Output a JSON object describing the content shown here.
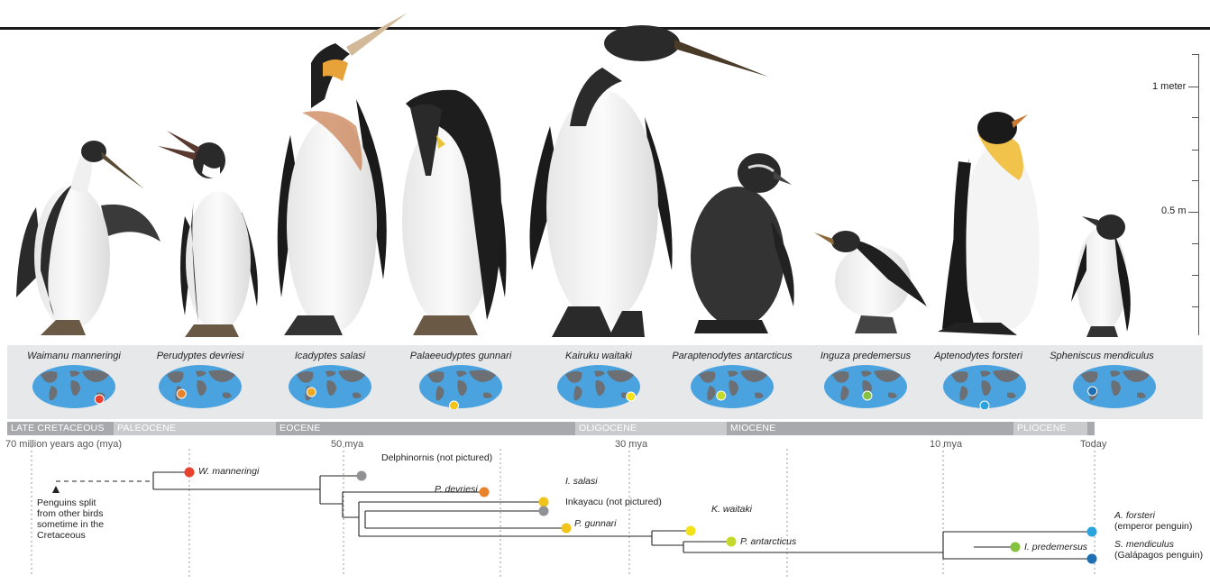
{
  "scale": {
    "one_meter": "1 meter",
    "half_meter": "0.5 m"
  },
  "species": [
    {
      "name": "Waimanu manneringi",
      "dot": "#e8412e"
    },
    {
      "name": "Perudyptes devriesi",
      "dot": "#e8832a"
    },
    {
      "name": "Icadyptes salasi",
      "dot": "#f2a81d"
    },
    {
      "name": "Palaeeudyptes gunnari",
      "dot": "#f0c419"
    },
    {
      "name": "Kairuku waitaki",
      "dot": "#f3e11a"
    },
    {
      "name": "Paraptenodytes antarcticus",
      "dot": "#c5d92c"
    },
    {
      "name": "Inguza predemersus",
      "dot": "#86c240"
    },
    {
      "name": "Aptenodytes forsteri",
      "dot": "#2ba4dd"
    },
    {
      "name": "Spheniscus mendiculus",
      "dot": "#1f6fb4"
    }
  ],
  "epochs": [
    "LATE CRETACEOUS",
    "PALEOCENE",
    "EOCENE",
    "OLIGOCENE",
    "MIOCENE",
    "PLIOCENE"
  ],
  "time_labels": [
    "70 million years ago (mya)",
    "50 mya",
    "30 mya",
    "10 mya",
    "Today"
  ],
  "tree": {
    "split_note": "Penguins split from other birds sometime in the Cretaceous",
    "leaves": {
      "waimanu": "W. manneringi",
      "delphinornis": "Delphinornis",
      "delphinornis_note": "(not pictured)",
      "perudyptes": "P. devriesi",
      "icadyptes": "I. salasi",
      "inkayacu": "Inkayacu",
      "inkayacu_note": "(not pictured)",
      "palaeeudyptes": "P. gunnari",
      "kairuku": "K. waitaki",
      "paraptenodytes": "P. antarcticus",
      "inguza": "I. predemersus",
      "aptenodytes": "A. forsteri",
      "aptenodytes_common": "(emperor penguin)",
      "spheniscus": "S. mendiculus",
      "spheniscus_common": "(Galápagos penguin)"
    },
    "node_colors": {
      "grey": "#8f9194"
    }
  },
  "colors": {
    "ocean": "#4aa3df",
    "land": "#6c6f73",
    "epoch_dark": "#a7a9ac",
    "epoch_light": "#c9cbcd"
  }
}
